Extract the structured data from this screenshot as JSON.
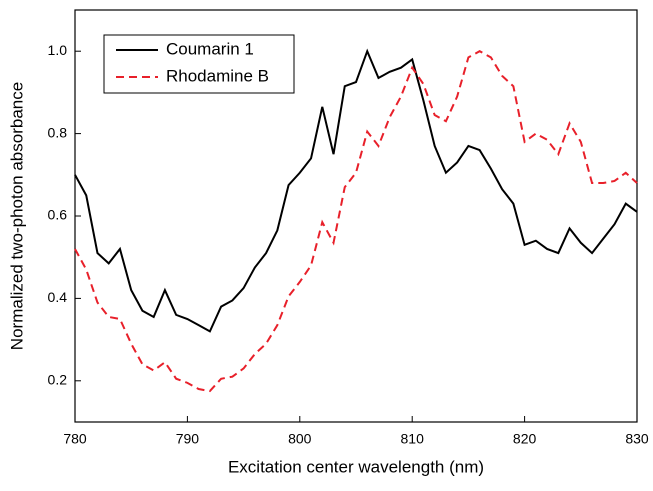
{
  "chart_data": {
    "type": "line",
    "xlabel": "Excitation center wavelength (nm)",
    "ylabel": "Normalized two-photon absorbance",
    "x": [
      780,
      781,
      782,
      783,
      784,
      785,
      786,
      787,
      788,
      789,
      790,
      791,
      792,
      793,
      794,
      795,
      796,
      797,
      798,
      799,
      800,
      801,
      802,
      803,
      804,
      805,
      806,
      807,
      808,
      809,
      810,
      811,
      812,
      813,
      814,
      815,
      816,
      817,
      818,
      819,
      820,
      821,
      822,
      823,
      824,
      825,
      826,
      827,
      828,
      829,
      830
    ],
    "series": [
      {
        "name": "Coumarin 1",
        "color": "#000000",
        "dash": false,
        "values": [
          0.7,
          0.65,
          0.51,
          0.485,
          0.52,
          0.42,
          0.37,
          0.355,
          0.42,
          0.36,
          0.35,
          0.335,
          0.32,
          0.38,
          0.395,
          0.425,
          0.475,
          0.51,
          0.565,
          0.675,
          0.705,
          0.74,
          0.865,
          0.75,
          0.915,
          0.925,
          1.0,
          0.935,
          0.95,
          0.96,
          0.98,
          0.88,
          0.77,
          0.705,
          0.73,
          0.77,
          0.76,
          0.715,
          0.665,
          0.63,
          0.53,
          0.54,
          0.52,
          0.51,
          0.57,
          0.535,
          0.51,
          0.545,
          0.58,
          0.63,
          0.61
        ]
      },
      {
        "name": "Rhodamine B",
        "color": "#e8202a",
        "dash": true,
        "values": [
          0.52,
          0.47,
          0.39,
          0.355,
          0.35,
          0.29,
          0.24,
          0.225,
          0.245,
          0.205,
          0.195,
          0.18,
          0.175,
          0.205,
          0.21,
          0.23,
          0.265,
          0.29,
          0.335,
          0.405,
          0.44,
          0.48,
          0.585,
          0.535,
          0.67,
          0.705,
          0.805,
          0.77,
          0.84,
          0.89,
          0.96,
          0.92,
          0.845,
          0.83,
          0.89,
          0.985,
          1.0,
          0.985,
          0.94,
          0.915,
          0.78,
          0.8,
          0.785,
          0.75,
          0.825,
          0.78,
          0.68,
          0.68,
          0.685,
          0.705,
          0.68
        ]
      }
    ],
    "xlim": [
      780,
      830
    ],
    "ylim": [
      0.1,
      1.1
    ],
    "xticks": [
      780,
      790,
      800,
      810,
      820,
      830
    ],
    "yticks": [
      0.2,
      0.4,
      0.6,
      0.8,
      {
        "value": 1,
        "label": "1.0"
      }
    ],
    "legend": "upper left"
  }
}
